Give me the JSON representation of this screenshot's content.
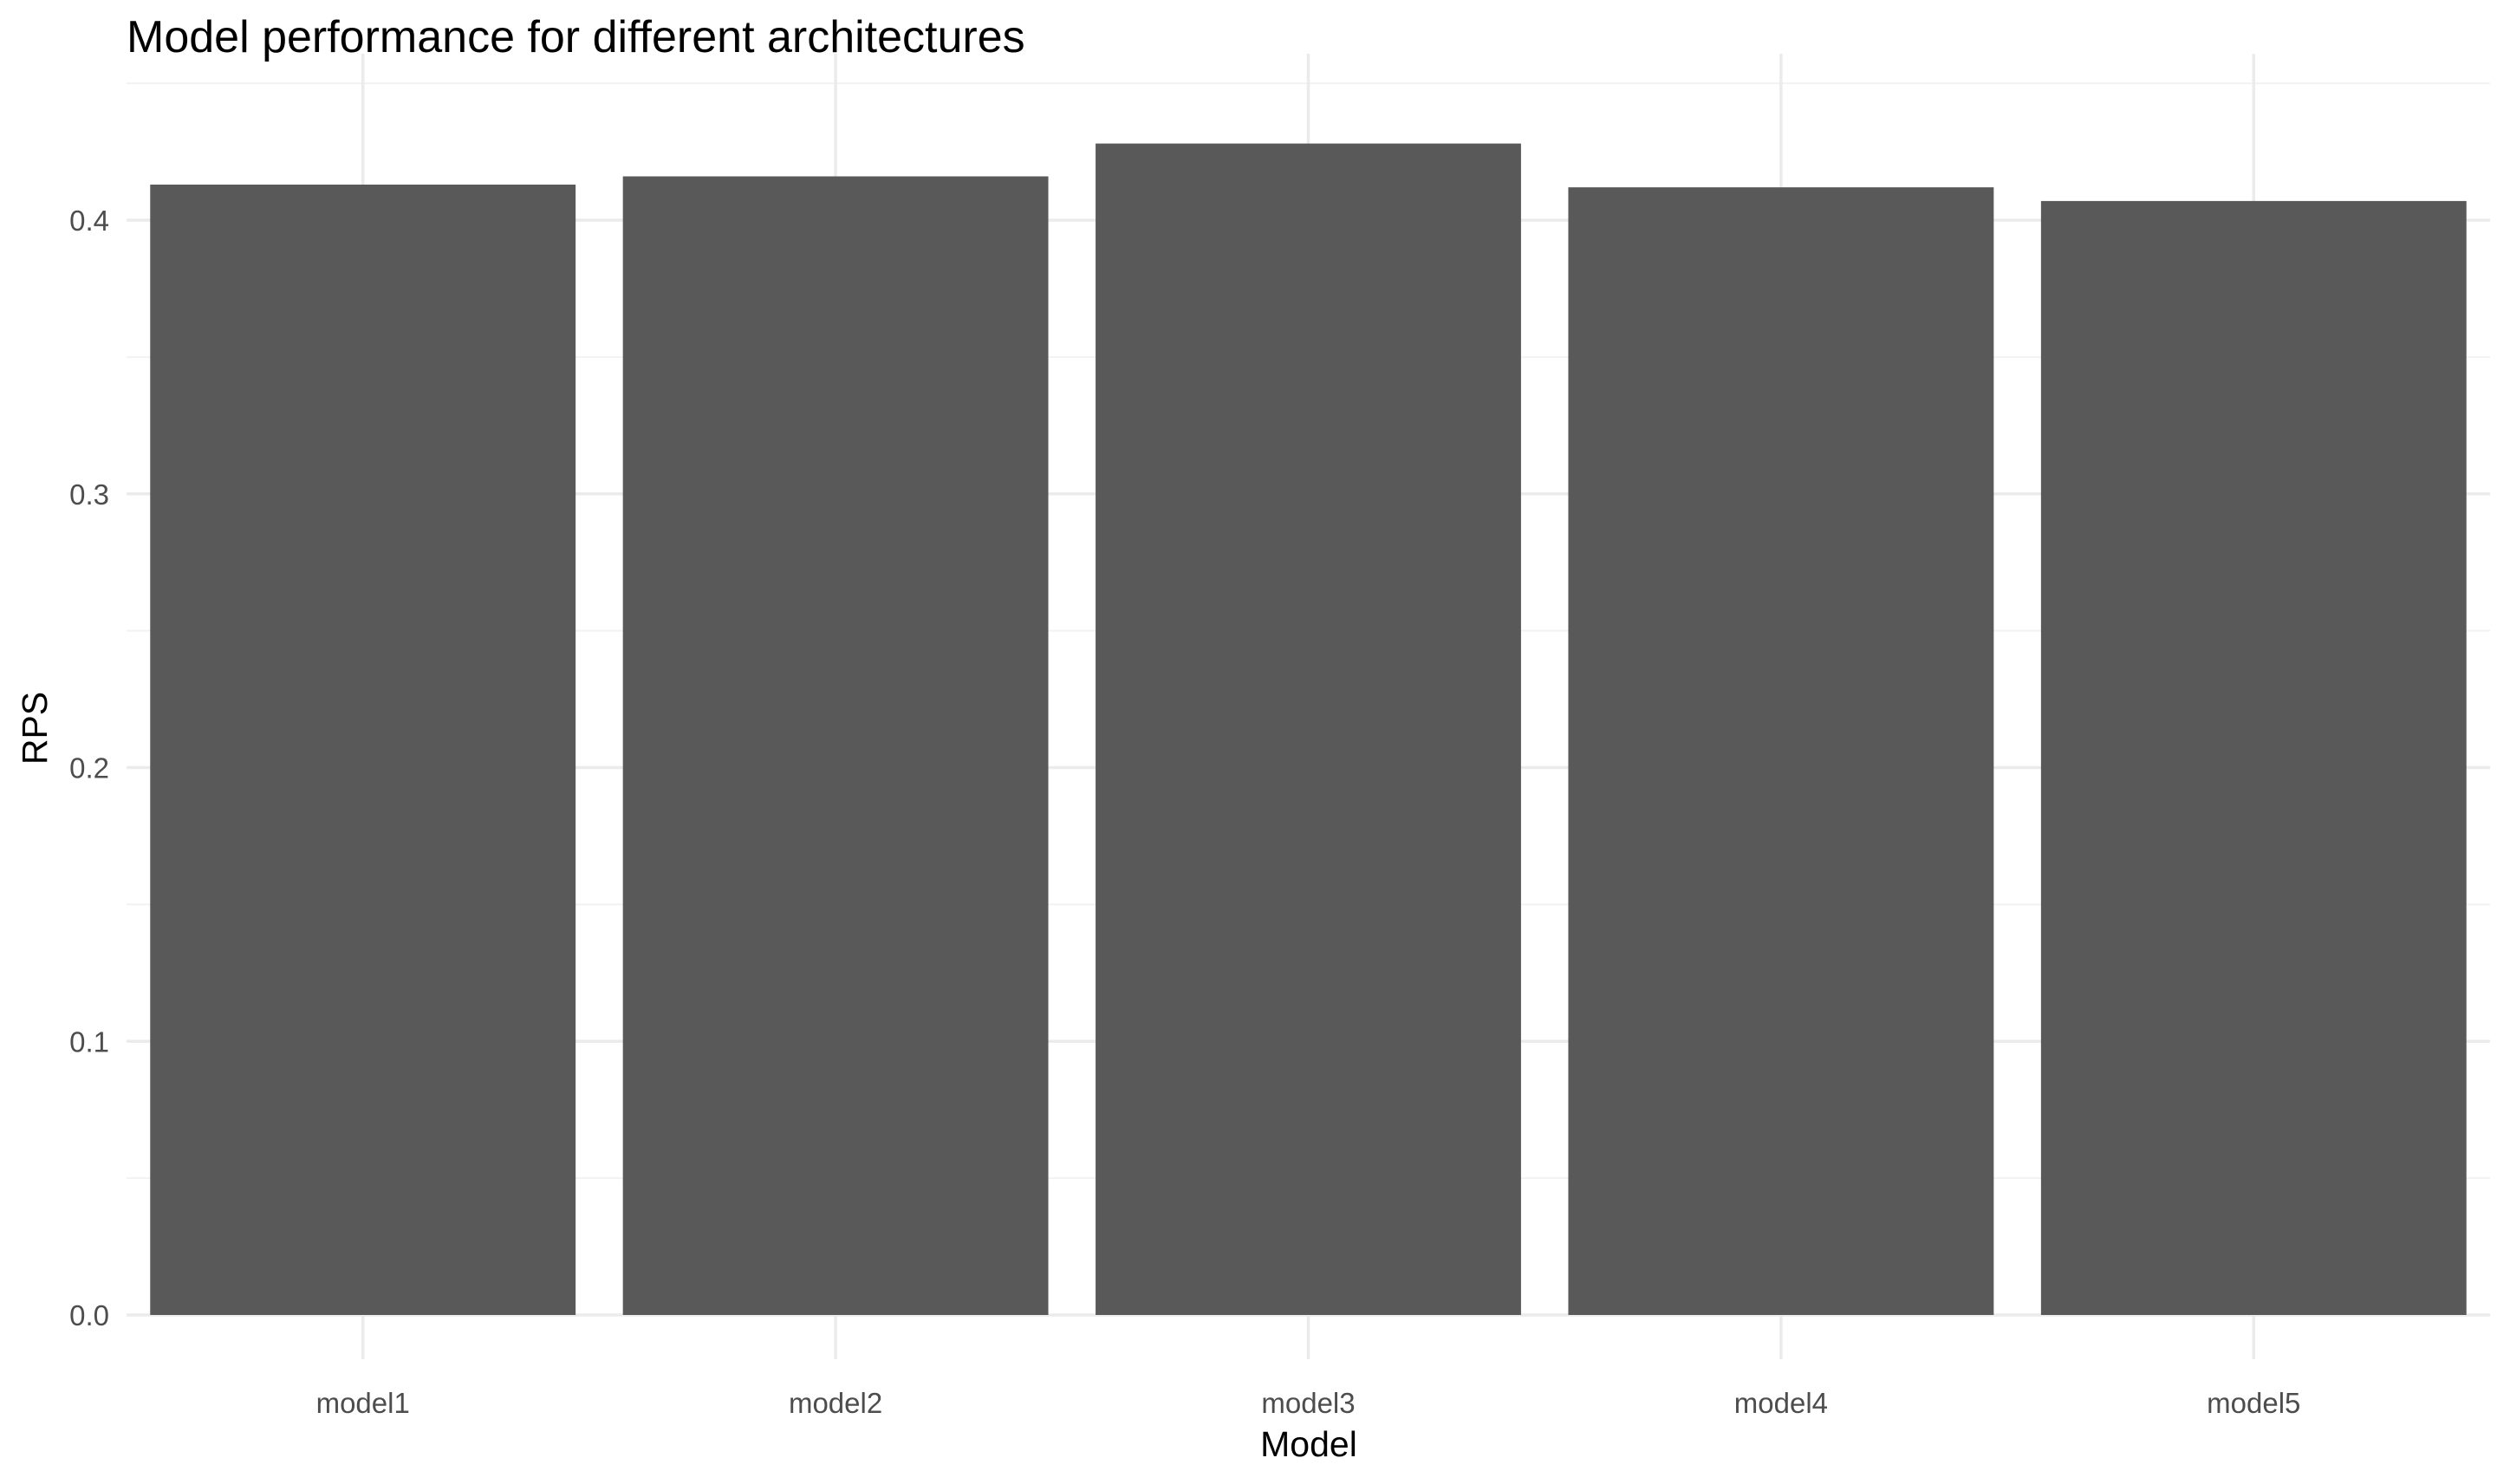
{
  "chart_data": {
    "type": "bar",
    "title": "Model performance for different architectures",
    "xlabel": "Model",
    "ylabel": "RPS",
    "categories": [
      "model1",
      "model2",
      "model3",
      "model4",
      "model5"
    ],
    "values": [
      0.413,
      0.416,
      0.428,
      0.412,
      0.407
    ],
    "ylim": [
      0,
      0.45
    ],
    "yticks": [
      "0.0",
      "0.1",
      "0.2",
      "0.3",
      "0.4"
    ],
    "grid": true,
    "bar_color": "#595959",
    "grid_color": "#ebebeb"
  }
}
